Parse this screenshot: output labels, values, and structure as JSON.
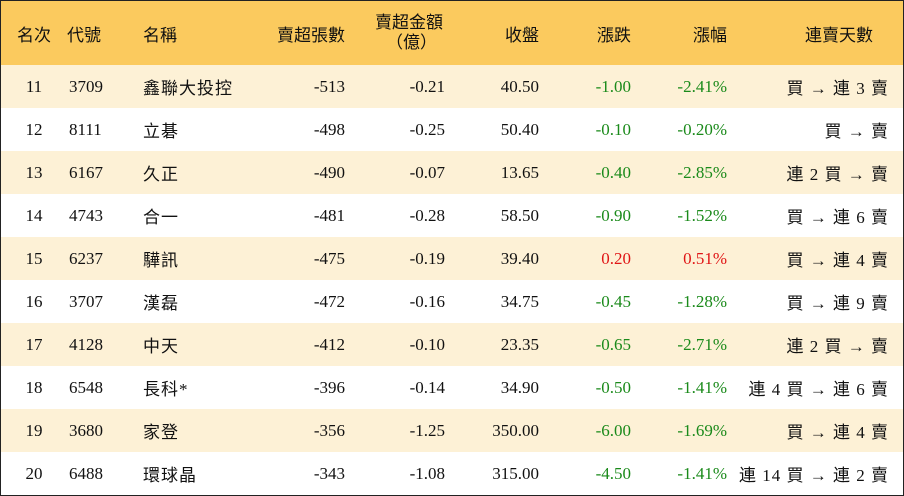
{
  "colors": {
    "header_bg": "#fbca5e",
    "odd_row_bg": "#fdf1d6",
    "down": "#1a8a1a",
    "up": "#e01515"
  },
  "headers": {
    "rank": "名次",
    "code": "代號",
    "name": "名稱",
    "net_sell_lots": "賣超張數",
    "net_sell_amount_line1": "賣超金額",
    "net_sell_amount_line2": "（億）",
    "close": "收盤",
    "change": "漲跌",
    "change_pct": "漲幅",
    "streak": "連賣天數"
  },
  "rows": [
    {
      "rank": "11",
      "code": "3709",
      "name": "鑫聯大投控",
      "lots": "-513",
      "amount": "-0.21",
      "close": "40.50",
      "change": "-1.00",
      "pct": "-2.41%",
      "dir": "neg",
      "streak": "買 → 連 3 賣"
    },
    {
      "rank": "12",
      "code": "8111",
      "name": "立碁",
      "lots": "-498",
      "amount": "-0.25",
      "close": "50.40",
      "change": "-0.10",
      "pct": "-0.20%",
      "dir": "neg",
      "streak": "買 → 賣"
    },
    {
      "rank": "13",
      "code": "6167",
      "name": "久正",
      "lots": "-490",
      "amount": "-0.07",
      "close": "13.65",
      "change": "-0.40",
      "pct": "-2.85%",
      "dir": "neg",
      "streak": "連 2 買 → 賣"
    },
    {
      "rank": "14",
      "code": "4743",
      "name": "合一",
      "lots": "-481",
      "amount": "-0.28",
      "close": "58.50",
      "change": "-0.90",
      "pct": "-1.52%",
      "dir": "neg",
      "streak": "買 → 連 6 賣"
    },
    {
      "rank": "15",
      "code": "6237",
      "name": "驊訊",
      "lots": "-475",
      "amount": "-0.19",
      "close": "39.40",
      "change": "0.20",
      "pct": "0.51%",
      "dir": "pos",
      "streak": "買 → 連 4 賣"
    },
    {
      "rank": "16",
      "code": "3707",
      "name": "漢磊",
      "lots": "-472",
      "amount": "-0.16",
      "close": "34.75",
      "change": "-0.45",
      "pct": "-1.28%",
      "dir": "neg",
      "streak": "買 → 連 9 賣"
    },
    {
      "rank": "17",
      "code": "4128",
      "name": "中天",
      "lots": "-412",
      "amount": "-0.10",
      "close": "23.35",
      "change": "-0.65",
      "pct": "-2.71%",
      "dir": "neg",
      "streak": "連 2 買 → 賣"
    },
    {
      "rank": "18",
      "code": "6548",
      "name": "長科*",
      "lots": "-396",
      "amount": "-0.14",
      "close": "34.90",
      "change": "-0.50",
      "pct": "-1.41%",
      "dir": "neg",
      "streak": "連 4 買 → 連 6 賣"
    },
    {
      "rank": "19",
      "code": "3680",
      "name": "家登",
      "lots": "-356",
      "amount": "-1.25",
      "close": "350.00",
      "change": "-6.00",
      "pct": "-1.69%",
      "dir": "neg",
      "streak": "買 → 連 4 賣"
    },
    {
      "rank": "20",
      "code": "6488",
      "name": "環球晶",
      "lots": "-343",
      "amount": "-1.08",
      "close": "315.00",
      "change": "-4.50",
      "pct": "-1.41%",
      "dir": "neg",
      "streak": "連 14 買 → 連 2 賣"
    }
  ]
}
